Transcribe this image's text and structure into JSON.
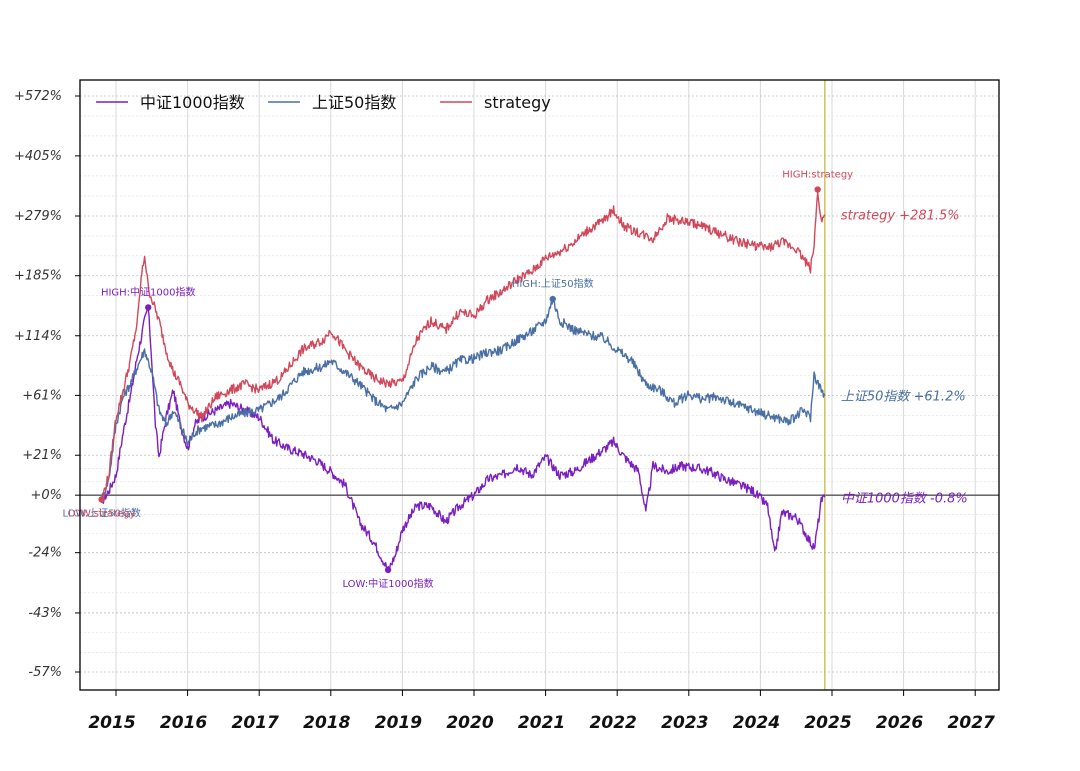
{
  "chart_data": {
    "type": "line",
    "title": "",
    "xlabel": "",
    "ylabel": "",
    "xlim": [
      2014.6,
      2027.0
    ],
    "y_scale": "log(1+r)",
    "y_ticks": [
      {
        "value": 572,
        "label": "+572%"
      },
      {
        "value": 405,
        "label": "+405%"
      },
      {
        "value": 279,
        "label": "+279%"
      },
      {
        "value": 185,
        "label": "+185%"
      },
      {
        "value": 114,
        "label": "+114%"
      },
      {
        "value": 61,
        "label": "+61%"
      },
      {
        "value": 21,
        "label": "+21%"
      },
      {
        "value": 0,
        "label": "+0%"
      },
      {
        "value": -24,
        "label": "-24%"
      },
      {
        "value": -43,
        "label": "-43%"
      },
      {
        "value": -57,
        "label": "-57%"
      }
    ],
    "x_ticks": [
      "2015",
      "2016",
      "2017",
      "2018",
      "2019",
      "2020",
      "2021",
      "2022",
      "2023",
      "2024",
      "2025",
      "2026",
      "2027"
    ],
    "x_tick_values": [
      2015,
      2016,
      2017,
      2018,
      2019,
      2020,
      2021,
      2022,
      2023,
      2024,
      2025,
      2026,
      2027
    ],
    "vline_x": 2024.9,
    "legend": {
      "placement": "top-left"
    },
    "series": [
      {
        "name": "中证1000指数",
        "color": "#7b1fbf",
        "end_label": "中证1000指数 -0.8%",
        "high_label": "HIGH:中证1000指数",
        "low_label": "LOW:中证1000指数",
        "x": [
          2014.8,
          2014.9,
          2015.0,
          2015.1,
          2015.2,
          2015.3,
          2015.4,
          2015.45,
          2015.5,
          2015.55,
          2015.6,
          2015.7,
          2015.8,
          2015.9,
          2016.0,
          2016.1,
          2016.2,
          2016.4,
          2016.6,
          2016.8,
          2017.0,
          2017.2,
          2017.4,
          2017.6,
          2017.8,
          2018.0,
          2018.2,
          2018.4,
          2018.6,
          2018.8,
          2018.9,
          2019.0,
          2019.2,
          2019.4,
          2019.6,
          2019.8,
          2020.0,
          2020.2,
          2020.4,
          2020.6,
          2020.8,
          2021.0,
          2021.2,
          2021.4,
          2021.6,
          2021.8,
          2021.95,
          2022.1,
          2022.3,
          2022.4,
          2022.5,
          2022.7,
          2022.9,
          2023.1,
          2023.3,
          2023.5,
          2023.7,
          2023.9,
          2024.1,
          2024.2,
          2024.3,
          2024.5,
          2024.7,
          2024.75,
          2024.85,
          2024.9
        ],
        "values": [
          -3,
          2,
          10,
          35,
          60,
          95,
          130,
          145,
          90,
          40,
          20,
          45,
          65,
          40,
          25,
          40,
          45,
          50,
          55,
          50,
          45,
          30,
          25,
          22,
          18,
          12,
          5,
          -12,
          -20,
          -30,
          -25,
          -15,
          -5,
          -5,
          -12,
          -5,
          0,
          8,
          10,
          15,
          10,
          20,
          10,
          12,
          18,
          24,
          29,
          20,
          12,
          -8,
          15,
          12,
          15,
          14,
          12,
          8,
          5,
          2,
          -5,
          -25,
          -8,
          -10,
          -20,
          -23,
          -3,
          -1
        ]
      },
      {
        "name": "上证50指数",
        "color": "#4a6fa5",
        "end_label": "上证50指数 +61.2%",
        "high_label": "HIGH:上证50指数",
        "low_label": "LOW:上证50指数",
        "x": [
          2014.8,
          2014.9,
          2015.0,
          2015.1,
          2015.2,
          2015.3,
          2015.4,
          2015.5,
          2015.6,
          2015.7,
          2015.8,
          2015.9,
          2016.0,
          2016.1,
          2016.2,
          2016.4,
          2016.6,
          2016.8,
          2017.0,
          2017.3,
          2017.6,
          2017.9,
          2018.0,
          2018.2,
          2018.4,
          2018.6,
          2018.8,
          2019.0,
          2019.2,
          2019.4,
          2019.6,
          2019.8,
          2020.0,
          2020.2,
          2020.4,
          2020.6,
          2020.8,
          2021.0,
          2021.1,
          2021.2,
          2021.4,
          2021.6,
          2021.8,
          2022.0,
          2022.2,
          2022.4,
          2022.6,
          2022.8,
          2023.0,
          2023.2,
          2023.4,
          2023.6,
          2023.8,
          2024.0,
          2024.2,
          2024.4,
          2024.6,
          2024.7,
          2024.75,
          2024.85,
          2024.9
        ],
        "values": [
          -2,
          8,
          40,
          60,
          70,
          85,
          100,
          80,
          50,
          40,
          50,
          40,
          28,
          35,
          38,
          40,
          45,
          48,
          50,
          60,
          80,
          85,
          90,
          80,
          70,
          58,
          50,
          55,
          75,
          85,
          80,
          90,
          92,
          98,
          100,
          110,
          118,
          130,
          155,
          130,
          120,
          115,
          112,
          100,
          90,
          70,
          65,
          55,
          62,
          58,
          60,
          55,
          52,
          48,
          45,
          42,
          50,
          45,
          78,
          65,
          61
        ]
      },
      {
        "name": "strategy",
        "color": "#d1485a",
        "end_label": "strategy +281.5%",
        "high_label": "HIGH:strategy",
        "low_label": "LOW:strategy",
        "x": [
          2014.8,
          2014.9,
          2015.0,
          2015.1,
          2015.2,
          2015.3,
          2015.35,
          2015.4,
          2015.45,
          2015.5,
          2015.6,
          2015.7,
          2015.8,
          2015.9,
          2016.0,
          2016.1,
          2016.2,
          2016.4,
          2016.6,
          2016.8,
          2017.0,
          2017.3,
          2017.6,
          2017.9,
          2018.0,
          2018.2,
          2018.4,
          2018.6,
          2018.8,
          2019.0,
          2019.2,
          2019.4,
          2019.6,
          2019.8,
          2020.0,
          2020.2,
          2020.4,
          2020.6,
          2020.8,
          2021.0,
          2021.2,
          2021.4,
          2021.6,
          2021.8,
          2021.95,
          2022.1,
          2022.3,
          2022.5,
          2022.7,
          2022.9,
          2023.1,
          2023.3,
          2023.5,
          2023.7,
          2023.9,
          2024.1,
          2024.3,
          2024.5,
          2024.7,
          2024.75,
          2024.8,
          2024.85,
          2024.9
        ],
        "values": [
          -2,
          10,
          45,
          65,
          90,
          130,
          180,
          215,
          170,
          155,
          130,
          100,
          80,
          70,
          55,
          50,
          45,
          60,
          65,
          70,
          65,
          75,
          100,
          110,
          120,
          100,
          85,
          75,
          70,
          72,
          110,
          130,
          120,
          140,
          135,
          155,
          165,
          180,
          190,
          210,
          220,
          235,
          255,
          270,
          290,
          260,
          250,
          240,
          275,
          270,
          265,
          255,
          245,
          235,
          230,
          225,
          235,
          225,
          195,
          230,
          330,
          270,
          281.5
        ]
      }
    ],
    "annotations": [
      {
        "text": "HIGH:中证1000指数",
        "series": "中证1000指数"
      },
      {
        "text": "LOW:中证1000指数",
        "series": "中证1000指数"
      },
      {
        "text": "HIGH:上证50指数",
        "series": "上证50指数"
      },
      {
        "text": "LOW:上证50指数",
        "series": "上证50指数"
      },
      {
        "text": "HIGH:strategy",
        "series": "strategy"
      },
      {
        "text": "LOW:strategy",
        "series": "strategy"
      }
    ]
  }
}
